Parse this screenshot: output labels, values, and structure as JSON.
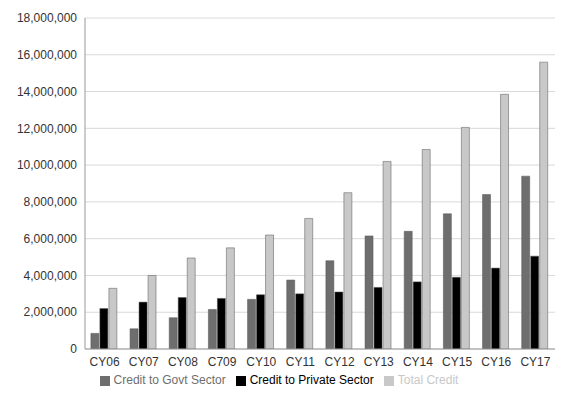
{
  "chart_data": {
    "type": "bar",
    "categories": [
      "CY06",
      "CY07",
      "CY08",
      "C709",
      "CY10",
      "CY11",
      "CY12",
      "CY13",
      "CY14",
      "CY15",
      "CY16",
      "CY17"
    ],
    "series": [
      {
        "name": "Credit to Govt Sector",
        "color": "#6e6e6e",
        "values": [
          850000,
          1100000,
          1700000,
          2150000,
          2700000,
          3750000,
          4800000,
          6150000,
          6400000,
          7350000,
          8400000,
          9400000
        ]
      },
      {
        "name": "Credit to Private Sector",
        "color": "#000000",
        "values": [
          2200000,
          2550000,
          2800000,
          2750000,
          2950000,
          3000000,
          3100000,
          3350000,
          3650000,
          3900000,
          4400000,
          5050000
        ]
      },
      {
        "name": "Total Credit",
        "color": "#c8c8c8",
        "values": [
          3300000,
          4000000,
          4950000,
          5500000,
          6200000,
          7100000,
          8500000,
          10200000,
          10850000,
          12050000,
          13850000,
          15600000
        ]
      }
    ],
    "ylim": [
      0,
      18000000
    ],
    "yticks": [
      0,
      {
        "value": 2000000,
        "label": "2,000,000"
      },
      {
        "value": 4000000,
        "label": "4,000,000"
      },
      {
        "value": 6000000,
        "label": "6,000,000"
      },
      {
        "value": 8000000,
        "label": "8,000,000"
      },
      {
        "value": 10000000,
        "label": "10,000,000"
      },
      {
        "value": 12000000,
        "label": "12,000,000"
      },
      {
        "value": 14000000,
        "label": "14,000,000"
      },
      {
        "value": 16000000,
        "label": "16,000,000"
      },
      {
        "value": 18000000,
        "label": "18,000,000"
      }
    ],
    "grid": true,
    "legend": "bottom"
  }
}
